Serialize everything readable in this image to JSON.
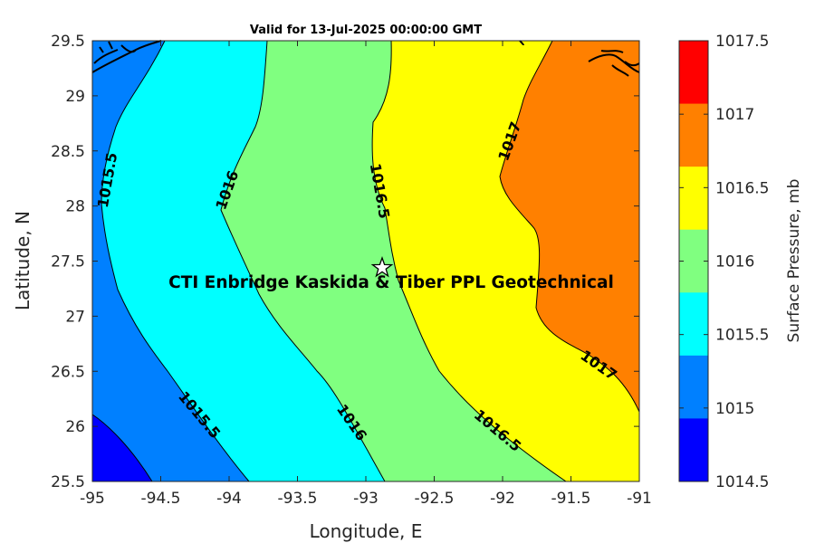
{
  "title": "Valid for 13-Jul-2025 00:00:00 GMT",
  "xlabel": "Longitude, E",
  "ylabel": "Latitude, N",
  "colorbar_label": "Surface Pressure, mb",
  "x_ticks": [
    "-95",
    "-94.5",
    "-94",
    "-93.5",
    "-93",
    "-92.5",
    "-92",
    "-91.5",
    "-91"
  ],
  "y_ticks": [
    "25.5",
    "26",
    "26.5",
    "27",
    "27.5",
    "28",
    "28.5",
    "29",
    "29.5"
  ],
  "colorbar_ticks": [
    "1014.5",
    "1015",
    "1015.5",
    "1016",
    "1016.5",
    "1017",
    "1017.5"
  ],
  "site_label": "CTI Enbridge  Kaskida & Tiber PPL Geotechnical",
  "contour_labels": {
    "l1015_5_top": "1015.5",
    "l1016_top": "1016",
    "l1016_5_top": "1016.5",
    "l1017_top": "1017",
    "l1015_5_bot": "1015.5",
    "l1016_bot": "1016",
    "l1016_5_bot": "1016.5",
    "l1017_bot": "1017"
  },
  "colors": {
    "b1014_5": "#0000FF",
    "b1015": "#0080FF",
    "b1015_5": "#00FFFF",
    "b1016": "#80FF80",
    "b1016_5": "#FFFF00",
    "b1017": "#FF8000",
    "b1017_5": "#FF0000"
  }
}
